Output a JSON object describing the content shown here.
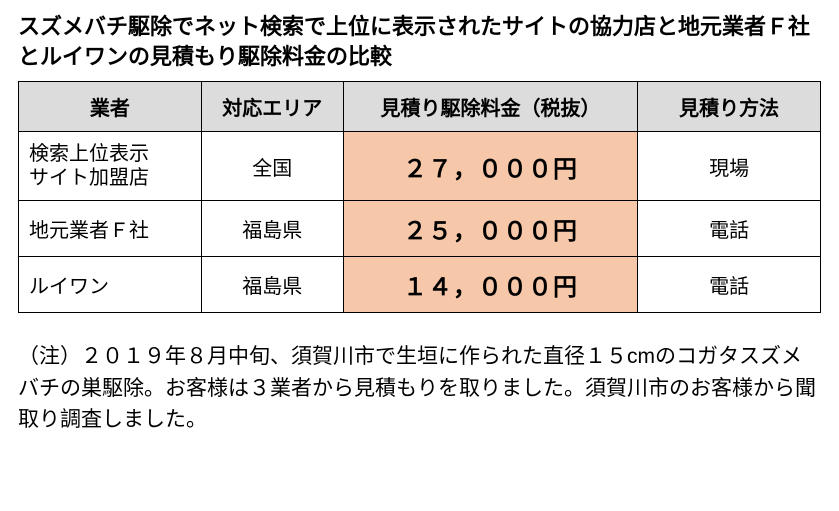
{
  "colors": {
    "header_bg": "#dcdcdc",
    "price_bg": "#f6c7a8",
    "border": "#000000",
    "text": "#000000",
    "page_bg": "#ffffff"
  },
  "title": "スズメバチ駆除でネット検索で上位に表示されたサイトの協力店と地元業者Ｆ社とルイワンの見積もり駆除料金の比較",
  "table": {
    "headers": [
      "業者",
      "対応エリア",
      "見積り駆除料金（税抜）",
      "見積り方法"
    ],
    "rows": [
      {
        "vendor_line1": "検索上位表示",
        "vendor_line2": "サイト加盟店",
        "area": "全国",
        "price": "２７，０００円",
        "method": "現場"
      },
      {
        "vendor_line1": "地元業者Ｆ社",
        "vendor_line2": "",
        "area": "福島県",
        "price": "２５，０００円",
        "method": "電話"
      },
      {
        "vendor_line1": "ルイワン",
        "vendor_line2": "",
        "area": "福島県",
        "price": "１４，０００円",
        "method": "電話"
      }
    ]
  },
  "note": "（注）２０１９年８月中旬、須賀川市で生垣に作られた直径１５cmのコガタスズメバチの巣駆除。お客様は３業者から見積もりを取りました。須賀川市のお客様から聞取り調査しました。"
}
